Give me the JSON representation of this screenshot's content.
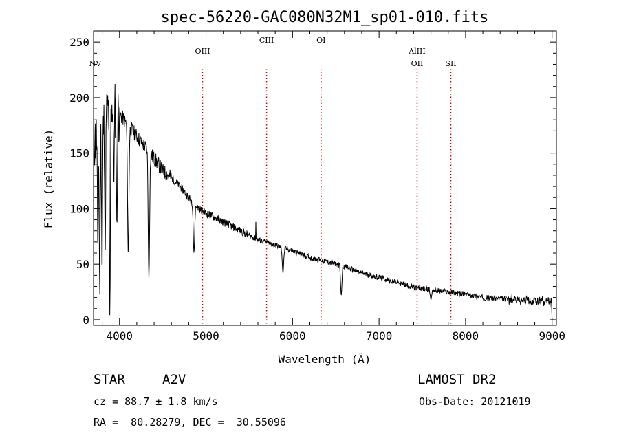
{
  "chart_data": {
    "type": "line",
    "title": "spec-56220-GAC080N32M1_sp01-010.fits",
    "xlabel": "Wavelength (Å)",
    "ylabel": "Flux (relative)",
    "xlim": [
      3700,
      9050
    ],
    "ylim": [
      -5,
      260
    ],
    "xticks": [
      4000,
      5000,
      6000,
      7000,
      8000,
      9000
    ],
    "yticks": [
      0,
      50,
      100,
      150,
      200,
      250
    ],
    "grid": false,
    "line_color": "#000000",
    "marker_color": "#cc0000",
    "continuum": [
      [
        3700,
        160
      ],
      [
        3800,
        170
      ],
      [
        3900,
        195
      ],
      [
        4000,
        185
      ],
      [
        4100,
        175
      ],
      [
        4200,
        165
      ],
      [
        4300,
        155
      ],
      [
        4400,
        145
      ],
      [
        4500,
        134
      ],
      [
        4600,
        128
      ],
      [
        4700,
        120
      ],
      [
        4800,
        110
      ],
      [
        4900,
        101
      ],
      [
        5000,
        96
      ],
      [
        5200,
        88
      ],
      [
        5400,
        80
      ],
      [
        5600,
        72
      ],
      [
        5800,
        67
      ],
      [
        6000,
        62
      ],
      [
        6200,
        56
      ],
      [
        6400,
        52
      ],
      [
        6600,
        48
      ],
      [
        6800,
        42
      ],
      [
        7000,
        38
      ],
      [
        7200,
        34
      ],
      [
        7400,
        29
      ],
      [
        7600,
        27
      ],
      [
        7800,
        25
      ],
      [
        8000,
        23
      ],
      [
        8200,
        20
      ],
      [
        8400,
        19
      ],
      [
        8600,
        18
      ],
      [
        8800,
        17
      ],
      [
        8980,
        16
      ]
    ],
    "absorption_lines": [
      [
        3750,
        60
      ],
      [
        3771,
        20
      ],
      [
        3798,
        40
      ],
      [
        3835,
        60
      ],
      [
        3889,
        0
      ],
      [
        3934,
        120
      ],
      [
        3970,
        80
      ],
      [
        4101,
        60
      ],
      [
        4340,
        37
      ],
      [
        4861,
        60
      ],
      [
        5890,
        42
      ],
      [
        6563,
        22
      ],
      [
        7600,
        18
      ]
    ],
    "emission_spikes": [
      [
        5577,
        88
      ],
      [
        6300,
        57
      ]
    ],
    "end_drop": [
      9000,
      0
    ],
    "line_markers": [
      {
        "label": "NV",
        "wavelength": 3720,
        "label_row": 2
      },
      {
        "label": "OIII",
        "wavelength": 4960,
        "label_row": 1
      },
      {
        "label": "CIII",
        "wavelength": 5700,
        "label_row": 0
      },
      {
        "label": "OI",
        "wavelength": 6330,
        "label_row": 0
      },
      {
        "label": "AlIII",
        "wavelength": 7440,
        "label_row": 1
      },
      {
        "label": "OII",
        "wavelength": 7440,
        "label_row": 2
      },
      {
        "label": "SII",
        "wavelength": 7830,
        "label_row": 2
      }
    ]
  },
  "info": {
    "object_class": "STAR",
    "subclass": "A2V",
    "survey": "LAMOST DR2",
    "cz": "cz = 88.7 ± 1.8 km/s",
    "obs_date": "Obs-Date: 20121019",
    "coords": "RA =  80.28279, DEC =  30.55096"
  }
}
